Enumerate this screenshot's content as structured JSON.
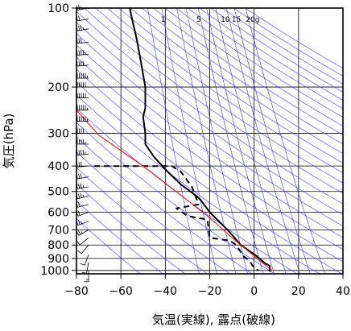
{
  "chart_data": {
    "type": "line",
    "title": "",
    "xlabel": "気温(実線), 露点(破線)",
    "ylabel": "気圧(hPa)",
    "xlim": [
      -80,
      40
    ],
    "ylim": [
      1030,
      100
    ],
    "y_scale": "log",
    "grid": true,
    "x_ticks": [
      -80,
      -60,
      -40,
      -20,
      0,
      20,
      40
    ],
    "x_tick_labels": [
      "−80",
      "−60",
      "−40",
      "−20",
      "0",
      "20",
      "40"
    ],
    "y_ticks": [
      100,
      200,
      300,
      400,
      500,
      600,
      700,
      800,
      900,
      1000
    ],
    "y_tick_labels": [
      "100",
      "200",
      "300",
      "400",
      "500",
      "600",
      "700",
      "800",
      "900",
      "1000"
    ],
    "mixing_ratio_labels": [
      "1",
      "5",
      "10",
      "15",
      "20g"
    ],
    "series": [
      {
        "role": "temperature",
        "style": "solid",
        "color": "#000000",
        "points": [
          [
            -56,
            100
          ],
          [
            -55,
            110
          ],
          [
            -53,
            130
          ],
          [
            -51,
            160
          ],
          [
            -49,
            200
          ],
          [
            -49,
            220
          ],
          [
            -49,
            240
          ],
          [
            -50,
            260
          ],
          [
            -49,
            300
          ],
          [
            -49,
            330
          ],
          [
            -45,
            370
          ],
          [
            -39,
            420
          ],
          [
            -33,
            470
          ],
          [
            -26,
            520
          ],
          [
            -24,
            540
          ],
          [
            -20,
            600
          ],
          [
            -12,
            700
          ],
          [
            -6,
            800
          ],
          [
            1,
            880
          ],
          [
            5,
            940
          ],
          [
            7,
            960
          ],
          [
            7,
            1010
          ]
        ]
      },
      {
        "role": "dewpoint",
        "style": "dashed",
        "color": "#000000",
        "points": [
          [
            -72,
            400
          ],
          [
            -37,
            400
          ],
          [
            -33,
            420
          ],
          [
            -28,
            480
          ],
          [
            -25,
            560
          ],
          [
            -35,
            580
          ],
          [
            -30,
            620
          ],
          [
            -21,
            640
          ],
          [
            -20,
            750
          ],
          [
            -11,
            770
          ],
          [
            -8,
            800
          ],
          [
            -5,
            880
          ],
          [
            -2,
            920
          ],
          [
            0,
            980
          ],
          [
            2,
            1000
          ]
        ]
      },
      {
        "role": "parcel",
        "style": "solid",
        "color": "#ff0000",
        "points": [
          [
            -80,
            245
          ],
          [
            -70,
            305
          ],
          [
            -50,
            400
          ],
          [
            -30,
            540
          ],
          [
            -20,
            630
          ],
          [
            -10,
            750
          ],
          [
            0,
            880
          ],
          [
            8,
            1000
          ]
        ]
      }
    ],
    "wind_barbs": [
      {
        "p": 100,
        "dir": 260,
        "spd": 15
      },
      {
        "p": 110,
        "dir": 260,
        "spd": 20
      },
      {
        "p": 120,
        "dir": 260,
        "spd": 25
      },
      {
        "p": 135,
        "dir": 265,
        "spd": 30
      },
      {
        "p": 150,
        "dir": 265,
        "spd": 35
      },
      {
        "p": 165,
        "dir": 265,
        "spd": 40
      },
      {
        "p": 185,
        "dir": 270,
        "spd": 45
      },
      {
        "p": 200,
        "dir": 270,
        "spd": 50
      },
      {
        "p": 220,
        "dir": 270,
        "spd": 50
      },
      {
        "p": 245,
        "dir": 270,
        "spd": 45
      },
      {
        "p": 270,
        "dir": 270,
        "spd": 45
      },
      {
        "p": 300,
        "dir": 270,
        "spd": 40
      },
      {
        "p": 330,
        "dir": 270,
        "spd": 35
      },
      {
        "p": 360,
        "dir": 265,
        "spd": 35
      },
      {
        "p": 400,
        "dir": 265,
        "spd": 30
      },
      {
        "p": 440,
        "dir": 260,
        "spd": 30
      },
      {
        "p": 480,
        "dir": 260,
        "spd": 25
      },
      {
        "p": 520,
        "dir": 255,
        "spd": 25
      },
      {
        "p": 560,
        "dir": 255,
        "spd": 20
      },
      {
        "p": 600,
        "dir": 250,
        "spd": 20
      },
      {
        "p": 650,
        "dir": 250,
        "spd": 15
      },
      {
        "p": 700,
        "dir": 240,
        "spd": 15
      },
      {
        "p": 750,
        "dir": 230,
        "spd": 10
      },
      {
        "p": 800,
        "dir": 220,
        "spd": 10
      },
      {
        "p": 870,
        "dir": 200,
        "spd": 10
      },
      {
        "p": 930,
        "dir": 190,
        "spd": 10
      },
      {
        "p": 1000,
        "dir": 180,
        "spd": 5
      }
    ]
  }
}
